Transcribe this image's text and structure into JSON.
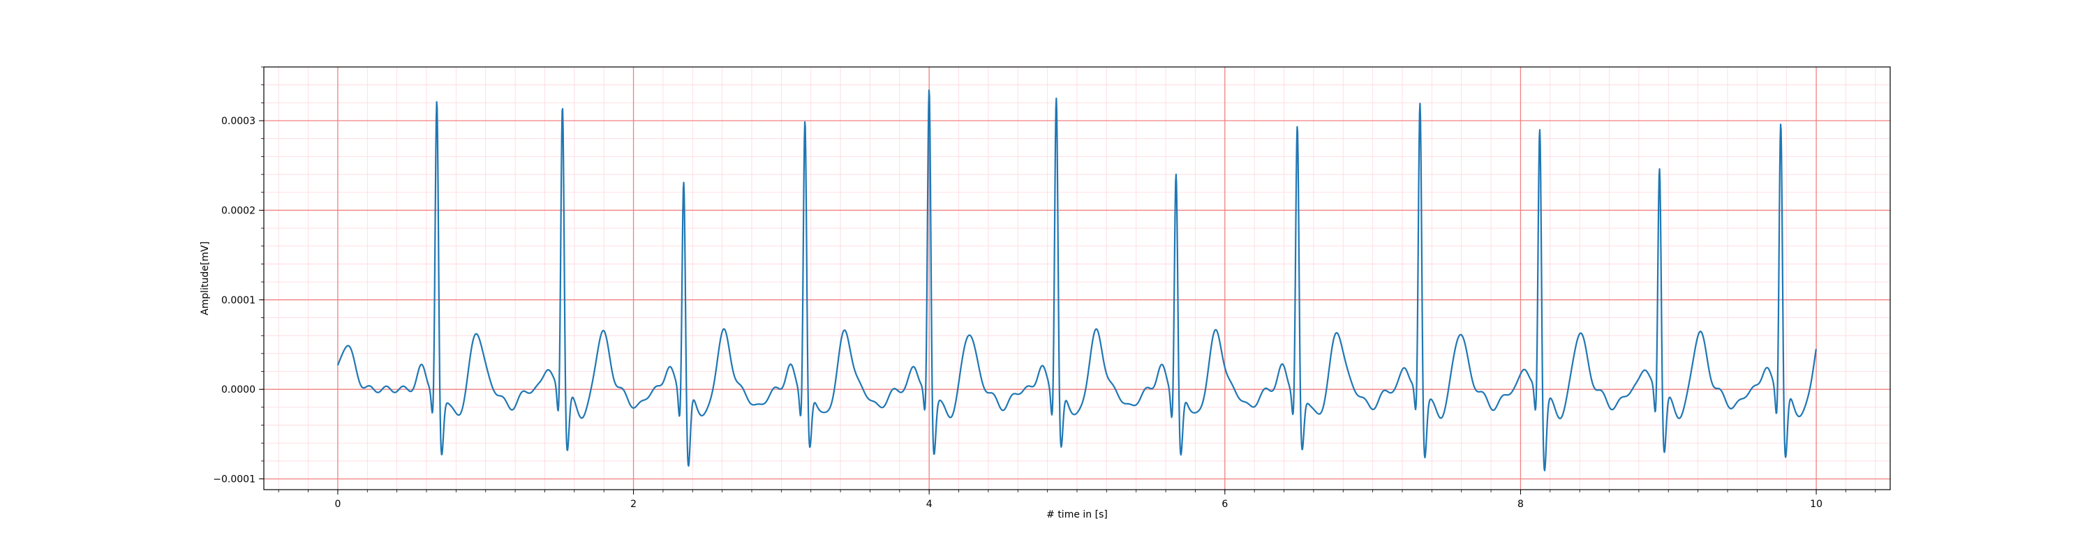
{
  "chart_data": {
    "type": "line",
    "title": "",
    "xlabel": "# time in [s]",
    "ylabel": "Amplitude[mV]",
    "xlim": [
      -0.5,
      10.5
    ],
    "ylim": [
      -0.000112,
      0.00036
    ],
    "xticks": [
      0,
      2,
      4,
      6,
      8,
      10
    ],
    "xtick_labels": [
      "0",
      "2",
      "4",
      "6",
      "8",
      "10"
    ],
    "yticks": [
      -0.0001,
      0.0,
      0.0001,
      0.0002,
      0.0003
    ],
    "ytick_labels": [
      "−0.0001",
      "0.0000",
      "0.0001",
      "0.0002",
      "0.0003"
    ],
    "grid": {
      "major": true,
      "minor": true,
      "major_color": "#f08080",
      "minor_color": "#ffd6dc"
    },
    "line_color": "#1f77b4",
    "beats": [
      {
        "t": 0.67,
        "r": 0.000328,
        "s": -7.5e-05
      },
      {
        "t": 1.52,
        "r": 0.000328,
        "s": -7e-05
      },
      {
        "t": 2.34,
        "r": 0.000245,
        "s": -9e-05
      },
      {
        "t": 3.16,
        "r": 0.000308,
        "s": -7e-05
      },
      {
        "t": 4.0,
        "r": 0.000342,
        "s": -7.2e-05
      },
      {
        "t": 4.86,
        "r": 0.000336,
        "s": -7e-05
      },
      {
        "t": 5.67,
        "r": 0.00025,
        "s": -7.8e-05
      },
      {
        "t": 6.49,
        "r": 0.0003,
        "s": -7e-05
      },
      {
        "t": 7.32,
        "r": 0.000328,
        "s": -7.5e-05
      },
      {
        "t": 8.13,
        "r": 0.000302,
        "s": -9e-05
      },
      {
        "t": 8.94,
        "r": 0.000258,
        "s": -7e-05
      },
      {
        "t": 9.76,
        "r": 0.00031,
        "s": -8e-05
      }
    ]
  }
}
